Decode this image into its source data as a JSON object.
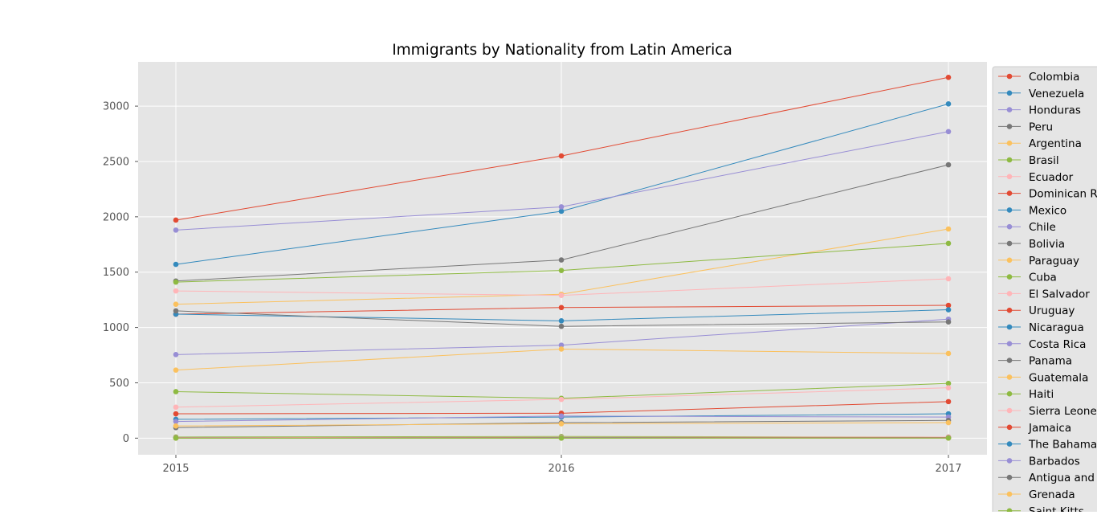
{
  "chart_data": {
    "type": "line",
    "title": "Immigrants by Nationality from Latin America",
    "xlabel": "",
    "ylabel": "",
    "x": [
      "2015",
      "2016",
      "2017"
    ],
    "ylim": [
      -150,
      3400
    ],
    "yticks": [
      0,
      500,
      1000,
      1500,
      2000,
      2500,
      3000
    ],
    "grid": true,
    "legend_position": "right",
    "series": [
      {
        "name": "Colombia",
        "color": "#E24A33",
        "values": [
          1970,
          2550,
          3260
        ]
      },
      {
        "name": "Venezuela",
        "color": "#348ABD",
        "values": [
          1570,
          2050,
          3020
        ]
      },
      {
        "name": "Honduras",
        "color": "#988ED5",
        "values": [
          1880,
          2090,
          2770
        ]
      },
      {
        "name": "Peru",
        "color": "#777777",
        "values": [
          1420,
          1610,
          2470
        ]
      },
      {
        "name": "Argentina",
        "color": "#FBC15E",
        "values": [
          1210,
          1300,
          1890
        ]
      },
      {
        "name": "Brasil",
        "color": "#8EBA42",
        "values": [
          1410,
          1515,
          1760
        ]
      },
      {
        "name": "Ecuador",
        "color": "#FFB5B8",
        "values": [
          1330,
          1290,
          1440
        ]
      },
      {
        "name": "Dominican R",
        "color": "#E24A33",
        "values": [
          1120,
          1180,
          1200
        ]
      },
      {
        "name": "Mexico",
        "color": "#348ABD",
        "values": [
          1120,
          1060,
          1160
        ]
      },
      {
        "name": "Chile",
        "color": "#988ED5",
        "values": [
          755,
          840,
          1075
        ]
      },
      {
        "name": "Bolivia",
        "color": "#777777",
        "values": [
          1150,
          1010,
          1050
        ]
      },
      {
        "name": "Paraguay",
        "color": "#FBC15E",
        "values": [
          615,
          805,
          765
        ]
      },
      {
        "name": "Cuba",
        "color": "#8EBA42",
        "values": [
          420,
          360,
          495
        ]
      },
      {
        "name": "El Salvador",
        "color": "#FFB5B8",
        "values": [
          280,
          350,
          455
        ]
      },
      {
        "name": "Uruguay",
        "color": "#E24A33",
        "values": [
          220,
          225,
          330
        ]
      },
      {
        "name": "Nicaragua",
        "color": "#348ABD",
        "values": [
          170,
          190,
          220
        ]
      },
      {
        "name": "Costa Rica",
        "color": "#988ED5",
        "values": [
          150,
          200,
          190
        ]
      },
      {
        "name": "Panama",
        "color": "#777777",
        "values": [
          95,
          140,
          160
        ]
      },
      {
        "name": "Guatemala",
        "color": "#FBC15E",
        "values": [
          110,
          130,
          140
        ]
      },
      {
        "name": "Haiti",
        "color": "#8EBA42",
        "values": [
          10,
          15,
          10
        ]
      },
      {
        "name": "Sierra Leone",
        "color": "#FFB5B8",
        "values": [
          5,
          8,
          10
        ]
      },
      {
        "name": "Jamaica",
        "color": "#E24A33",
        "values": [
          3,
          5,
          5
        ]
      },
      {
        "name": "The Bahamas",
        "color": "#348ABD",
        "values": [
          2,
          4,
          3
        ]
      },
      {
        "name": "Barbados",
        "color": "#988ED5",
        "values": [
          1,
          2,
          2
        ]
      },
      {
        "name": "Antigua and",
        "color": "#777777",
        "values": [
          1,
          1,
          1
        ]
      },
      {
        "name": "Grenada",
        "color": "#FBC15E",
        "values": [
          0,
          1,
          1
        ]
      },
      {
        "name": "Saint Kitts",
        "color": "#8EBA42",
        "values": [
          0,
          0,
          1
        ]
      }
    ]
  }
}
